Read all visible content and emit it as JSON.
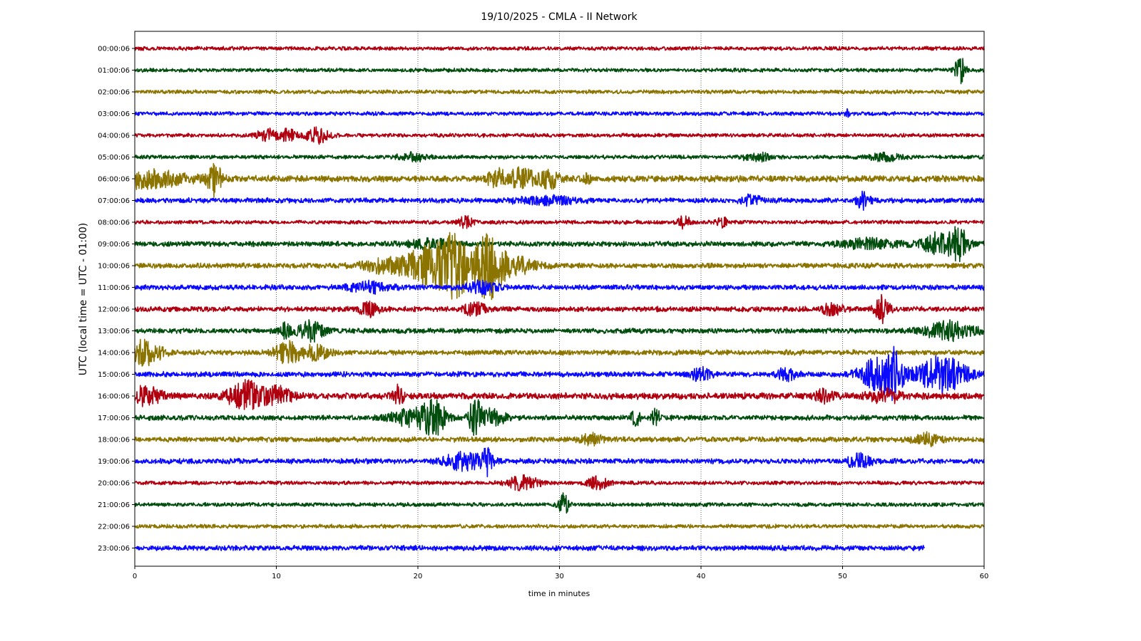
{
  "chart_data": {
    "type": "line",
    "title": "19/10/2025 - CMLA - II Network",
    "xlabel": "time in minutes",
    "ylabel": "UTC (local time = UTC - 01:00)",
    "xlim": [
      0,
      60
    ],
    "x_ticks": [
      "0",
      "10",
      "20",
      "30",
      "40",
      "50",
      "60"
    ],
    "grid": "vertical dotted lines at each 10 minutes",
    "colors": [
      "#b0000f",
      "#004d0d",
      "#8c7400",
      "#0a0aff"
    ],
    "last_trace_end_minute": 55.8,
    "series": [
      {
        "name": "00:00:06",
        "noise": 3,
        "events": []
      },
      {
        "name": "01:00:06",
        "noise": 3,
        "events": [
          [
            58.3,
            0.5,
            22
          ]
        ]
      },
      {
        "name": "02:00:06",
        "noise": 3,
        "events": []
      },
      {
        "name": "03:00:06",
        "noise": 3,
        "events": [
          [
            50.3,
            0.2,
            6
          ]
        ]
      },
      {
        "name": "04:00:06",
        "noise": 3,
        "events": [
          [
            9.3,
            1.0,
            9
          ],
          [
            10.8,
            0.8,
            8
          ],
          [
            12.9,
            1.2,
            12
          ]
        ]
      },
      {
        "name": "05:00:06",
        "noise": 3,
        "events": [
          [
            19.7,
            1.5,
            5
          ],
          [
            44,
            1.5,
            5
          ],
          [
            53,
            1.5,
            6
          ]
        ]
      },
      {
        "name": "06:00:06",
        "noise": 5,
        "events": [
          [
            0.7,
            4.0,
            12
          ],
          [
            5.6,
            0.7,
            22
          ],
          [
            25.5,
            0.8,
            14
          ],
          [
            27.3,
            1.4,
            14
          ],
          [
            29.3,
            1.0,
            12
          ],
          [
            32,
            0.3,
            8
          ]
        ]
      },
      {
        "name": "07:00:06",
        "noise": 4,
        "events": [
          [
            29,
            3.0,
            5
          ],
          [
            43.5,
            1.0,
            7
          ],
          [
            51.5,
            0.6,
            13
          ]
        ]
      },
      {
        "name": "08:00:06",
        "noise": 3,
        "events": [
          [
            23.4,
            0.7,
            8
          ],
          [
            38.8,
            0.7,
            8
          ],
          [
            41.5,
            0.5,
            7
          ]
        ]
      },
      {
        "name": "09:00:06",
        "noise": 4,
        "events": [
          [
            21,
            2.5,
            6
          ],
          [
            52,
            3.0,
            6
          ],
          [
            57,
            1.8,
            16
          ],
          [
            58.3,
            0.8,
            18
          ]
        ]
      },
      {
        "name": "10:00:06",
        "noise": 4,
        "events": [
          [
            18,
            2.5,
            12
          ],
          [
            20.6,
            1.6,
            26
          ],
          [
            22.6,
            1.6,
            44
          ],
          [
            24.9,
            1.2,
            38
          ],
          [
            26.3,
            2.5,
            16
          ]
        ]
      },
      {
        "name": "11:00:06",
        "noise": 4,
        "events": [
          [
            16.5,
            2.0,
            7
          ],
          [
            24.5,
            1.5,
            8
          ]
        ]
      },
      {
        "name": "12:00:06",
        "noise": 4,
        "events": [
          [
            16.5,
            1.0,
            9
          ],
          [
            24,
            1.2,
            8
          ],
          [
            49.3,
            1.0,
            8
          ],
          [
            52.8,
            0.7,
            18
          ]
        ]
      },
      {
        "name": "13:00:06",
        "noise": 4,
        "events": [
          [
            10.6,
            0.6,
            10
          ],
          [
            12.5,
            1.3,
            14
          ],
          [
            57.5,
            2.5,
            12
          ]
        ]
      },
      {
        "name": "14:00:06",
        "noise": 4,
        "events": [
          [
            0.6,
            1.8,
            18
          ],
          [
            10.8,
            1.3,
            14
          ],
          [
            12.8,
            1.5,
            9
          ]
        ]
      },
      {
        "name": "15:00:06",
        "noise": 4,
        "events": [
          [
            40,
            1.0,
            9
          ],
          [
            46,
            1.0,
            8
          ],
          [
            52.5,
            1.8,
            22
          ],
          [
            53.7,
            0.8,
            26
          ],
          [
            57,
            2.5,
            24
          ]
        ]
      },
      {
        "name": "16:00:06",
        "noise": 5,
        "events": [
          [
            0.9,
            1.3,
            14
          ],
          [
            7.8,
            1.6,
            20
          ],
          [
            10,
            1.5,
            12
          ],
          [
            18.6,
            0.5,
            15
          ],
          [
            48.7,
            0.8,
            10
          ],
          [
            53,
            1.5,
            10
          ]
        ]
      },
      {
        "name": "17:00:06",
        "noise": 4,
        "events": [
          [
            19.5,
            2.0,
            12
          ],
          [
            21.2,
            1.2,
            22
          ],
          [
            24,
            0.6,
            24
          ],
          [
            25.1,
            1.5,
            12
          ],
          [
            35.4,
            0.4,
            14
          ],
          [
            36.8,
            0.5,
            10
          ]
        ]
      },
      {
        "name": "18:00:06",
        "noise": 4,
        "events": [
          [
            32.2,
            1.0,
            8
          ],
          [
            56,
            1.3,
            8
          ]
        ]
      },
      {
        "name": "19:00:06",
        "noise": 4,
        "events": [
          [
            23.3,
            2.0,
            12
          ],
          [
            24.9,
            0.5,
            16
          ],
          [
            51.2,
            1.2,
            10
          ]
        ]
      },
      {
        "name": "20:00:06",
        "noise": 3,
        "events": [
          [
            27.4,
            1.5,
            10
          ],
          [
            32.7,
            1.0,
            9
          ]
        ]
      },
      {
        "name": "21:00:06",
        "noise": 3,
        "events": [
          [
            30.3,
            0.5,
            16
          ]
        ]
      },
      {
        "name": "22:00:06",
        "noise": 3,
        "events": []
      },
      {
        "name": "23:00:06",
        "noise": 4,
        "events": []
      }
    ]
  }
}
